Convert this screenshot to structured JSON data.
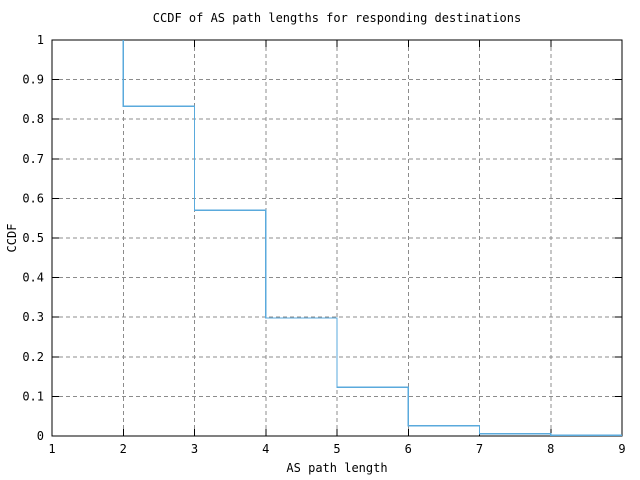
{
  "chart_data": {
    "type": "line",
    "subtype": "ccdf-step",
    "title": "CCDF of AS path lengths for responding destinations",
    "xlabel": "AS path length",
    "ylabel": "CCDF",
    "xlim": [
      1,
      9
    ],
    "ylim": [
      0,
      1
    ],
    "x_tick_values": [
      1,
      2,
      3,
      4,
      5,
      6,
      7,
      8,
      9
    ],
    "x_tick_labels": [
      "1",
      "2",
      "3",
      "4",
      "5",
      "6",
      "7",
      "8",
      "9"
    ],
    "y_tick_values": [
      0,
      0.1,
      0.2,
      0.3,
      0.4,
      0.5,
      0.6,
      0.7,
      0.8,
      0.9,
      1
    ],
    "y_tick_labels": [
      "0",
      "0.1",
      "0.2",
      "0.3",
      "0.4",
      "0.5",
      "0.6",
      "0.7",
      "0.8",
      "0.9",
      "1"
    ],
    "grid": true,
    "legend_position": "none",
    "line_color": "#5aaadc",
    "points": [
      [
        2,
        1.0
      ],
      [
        2,
        0.833
      ],
      [
        3,
        0.833
      ],
      [
        3,
        0.57
      ],
      [
        4,
        0.57
      ],
      [
        4,
        0.298
      ],
      [
        5,
        0.298
      ],
      [
        5,
        0.123
      ],
      [
        6,
        0.123
      ],
      [
        6,
        0.026
      ],
      [
        7,
        0.026
      ],
      [
        7,
        0.006
      ],
      [
        8,
        0.006
      ],
      [
        8,
        0.002
      ],
      [
        9,
        0.002
      ]
    ]
  },
  "colors": {
    "background": "#ffffff",
    "border": "#000000",
    "grid": "#8c8c8c",
    "tick": "#000000",
    "text": "#000000",
    "line": "#5aaadc"
  }
}
